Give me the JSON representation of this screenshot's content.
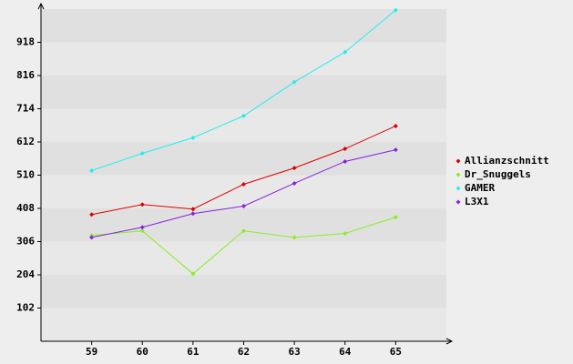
{
  "chart_data": {
    "type": "line",
    "x": [
      59,
      60,
      61,
      62,
      63,
      64,
      65
    ],
    "xlim": [
      58,
      66
    ],
    "xticks": [
      59,
      60,
      61,
      62,
      63,
      64,
      65
    ],
    "ylim": [
      0,
      1020
    ],
    "yticks": [
      102,
      204,
      306,
      408,
      510,
      612,
      714,
      816,
      918
    ],
    "legend": "right",
    "series": [
      {
        "name": "Allianzschnitt",
        "color": "#dd0000",
        "values": [
          389,
          420,
          406,
          482,
          532,
          591,
          661
        ]
      },
      {
        "name": "Dr_Snuggels",
        "color": "#88ee22",
        "values": [
          325,
          339,
          207,
          339,
          319,
          331,
          381
        ]
      },
      {
        "name": "GAMER",
        "color": "#22eeee",
        "values": [
          524,
          577,
          625,
          692,
          796,
          888,
          1017
        ]
      },
      {
        "name": "L3X1",
        "color": "#8822dd",
        "values": [
          319,
          350,
          392,
          415,
          485,
          552,
          588
        ]
      }
    ]
  }
}
